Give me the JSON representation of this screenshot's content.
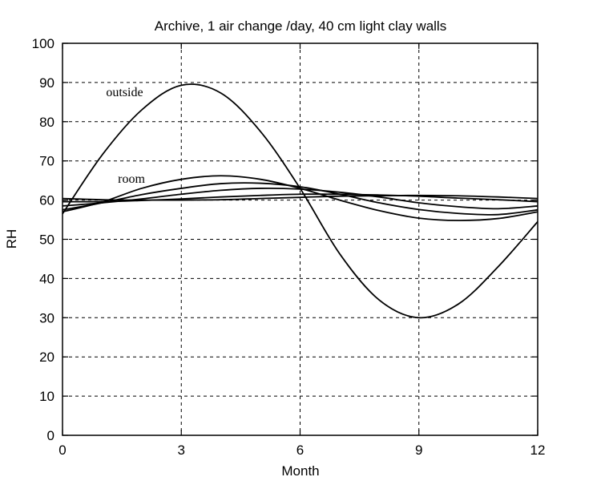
{
  "chart_data": {
    "type": "line",
    "title": "Archive, 1 air change /day, 40 cm light clay walls",
    "xlabel": "Month",
    "ylabel": "RH",
    "xlim": [
      0,
      12
    ],
    "ylim": [
      0,
      100
    ],
    "xticks": [
      0,
      3,
      6,
      9,
      12
    ],
    "yticks": [
      0,
      10,
      20,
      30,
      40,
      50,
      60,
      70,
      80,
      90,
      100
    ],
    "grid": true,
    "annotations": [
      {
        "text": "outside",
        "x": 1.1,
        "y": 86.5
      },
      {
        "text": "room",
        "x": 1.4,
        "y": 64.4
      }
    ],
    "x": [
      0,
      1,
      2,
      3,
      4,
      5,
      6,
      7,
      8,
      9,
      10,
      11,
      12
    ],
    "series": [
      {
        "values": [
          56.5,
          71.5,
          83.0,
          89.3,
          87.3,
          77.5,
          63.0,
          46.3,
          34.5,
          30.0,
          33.5,
          43.0,
          54.5
        ]
      },
      {
        "values": [
          57.0,
          59.5,
          63.0,
          65.3,
          66.2,
          65.3,
          63.0,
          60.0,
          57.3,
          55.4,
          54.8,
          55.3,
          57.0
        ]
      },
      {
        "values": [
          57.5,
          59.3,
          61.4,
          63.0,
          64.2,
          64.3,
          63.4,
          61.5,
          59.3,
          57.6,
          56.6,
          56.3,
          57.5
        ]
      },
      {
        "values": [
          58.5,
          59.3,
          60.3,
          61.5,
          62.5,
          63.0,
          62.8,
          62.0,
          60.8,
          59.3,
          58.3,
          57.8,
          58.5
        ]
      },
      {
        "values": [
          59.6,
          59.6,
          59.9,
          60.3,
          60.8,
          61.2,
          61.5,
          61.5,
          61.3,
          61.0,
          60.5,
          60.1,
          59.6
        ]
      },
      {
        "values": [
          60.4,
          60.1,
          60.0,
          60.0,
          60.1,
          60.4,
          60.7,
          61.0,
          61.1,
          61.2,
          61.1,
          60.8,
          60.4
        ]
      }
    ]
  }
}
